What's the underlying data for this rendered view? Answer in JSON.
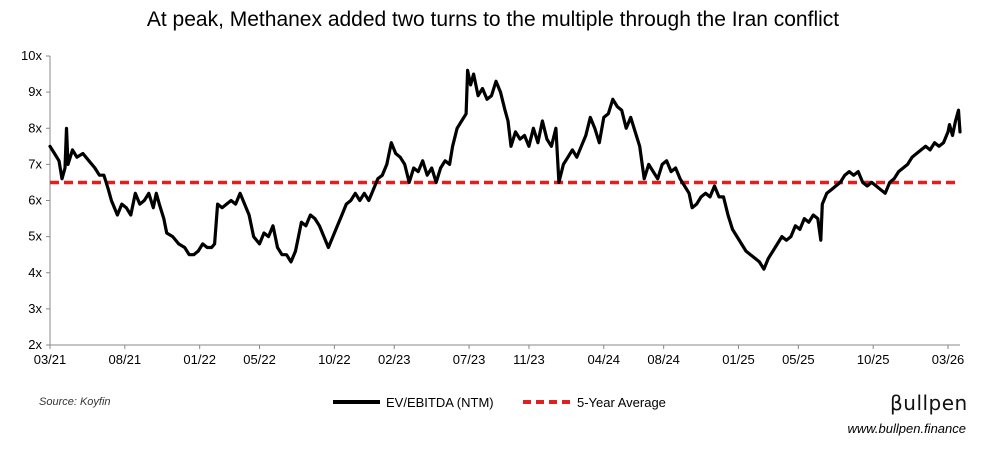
{
  "chart_data": {
    "type": "line",
    "title": "At peak, Methanex added two turns to the multiple through the Iran conflict",
    "ylim": [
      2,
      10
    ],
    "y_ticks": [
      "2x",
      "3x",
      "4x",
      "5x",
      "6x",
      "7x",
      "8x",
      "9x",
      "10x"
    ],
    "x_range": [
      0,
      60.8
    ],
    "x_ticks": [
      {
        "label": "03/21",
        "t": 0
      },
      {
        "label": "08/21",
        "t": 5
      },
      {
        "label": "01/22",
        "t": 10
      },
      {
        "label": "05/22",
        "t": 14
      },
      {
        "label": "10/22",
        "t": 19
      },
      {
        "label": "02/23",
        "t": 23
      },
      {
        "label": "07/23",
        "t": 28
      },
      {
        "label": "11/23",
        "t": 32
      },
      {
        "label": "04/24",
        "t": 37
      },
      {
        "label": "08/24",
        "t": 41
      },
      {
        "label": "01/25",
        "t": 46
      },
      {
        "label": "05/25",
        "t": 50
      },
      {
        "label": "10/25",
        "t": 55
      },
      {
        "label": "03/26",
        "t": 60
      }
    ],
    "series": [
      {
        "name": "EV/EBITDA (NTM)",
        "color": "#000000",
        "style": "solid",
        "points": [
          [
            0.0,
            7.5
          ],
          [
            0.3,
            7.3
          ],
          [
            0.6,
            7.1
          ],
          [
            0.8,
            6.6
          ],
          [
            1.0,
            6.9
          ],
          [
            1.1,
            8.0
          ],
          [
            1.2,
            7.0
          ],
          [
            1.5,
            7.4
          ],
          [
            1.8,
            7.2
          ],
          [
            2.2,
            7.3
          ],
          [
            2.6,
            7.1
          ],
          [
            3.0,
            6.9
          ],
          [
            3.3,
            6.7
          ],
          [
            3.6,
            6.7
          ],
          [
            3.9,
            6.3
          ],
          [
            4.1,
            6.0
          ],
          [
            4.3,
            5.8
          ],
          [
            4.5,
            5.6
          ],
          [
            4.8,
            5.9
          ],
          [
            5.1,
            5.8
          ],
          [
            5.4,
            5.6
          ],
          [
            5.7,
            6.2
          ],
          [
            6.0,
            5.9
          ],
          [
            6.3,
            6.0
          ],
          [
            6.6,
            6.2
          ],
          [
            6.9,
            5.8
          ],
          [
            7.1,
            6.2
          ],
          [
            7.3,
            5.9
          ],
          [
            7.6,
            5.5
          ],
          [
            7.8,
            5.1
          ],
          [
            8.2,
            5.0
          ],
          [
            8.6,
            4.8
          ],
          [
            9.0,
            4.7
          ],
          [
            9.3,
            4.5
          ],
          [
            9.6,
            4.5
          ],
          [
            9.9,
            4.6
          ],
          [
            10.2,
            4.8
          ],
          [
            10.5,
            4.7
          ],
          [
            10.8,
            4.7
          ],
          [
            11.0,
            4.8
          ],
          [
            11.2,
            5.9
          ],
          [
            11.5,
            5.8
          ],
          [
            11.8,
            5.9
          ],
          [
            12.1,
            6.0
          ],
          [
            12.4,
            5.9
          ],
          [
            12.7,
            6.2
          ],
          [
            13.0,
            5.9
          ],
          [
            13.3,
            5.6
          ],
          [
            13.6,
            5.0
          ],
          [
            14.0,
            4.8
          ],
          [
            14.3,
            5.1
          ],
          [
            14.6,
            5.0
          ],
          [
            14.9,
            5.3
          ],
          [
            15.2,
            4.7
          ],
          [
            15.5,
            4.5
          ],
          [
            15.8,
            4.5
          ],
          [
            16.1,
            4.3
          ],
          [
            16.4,
            4.6
          ],
          [
            16.6,
            5.0
          ],
          [
            16.8,
            5.4
          ],
          [
            17.1,
            5.3
          ],
          [
            17.4,
            5.6
          ],
          [
            17.7,
            5.5
          ],
          [
            18.0,
            5.3
          ],
          [
            18.3,
            5.0
          ],
          [
            18.6,
            4.7
          ],
          [
            18.9,
            5.0
          ],
          [
            19.2,
            5.3
          ],
          [
            19.5,
            5.6
          ],
          [
            19.8,
            5.9
          ],
          [
            20.1,
            6.0
          ],
          [
            20.4,
            6.2
          ],
          [
            20.7,
            6.0
          ],
          [
            21.0,
            6.2
          ],
          [
            21.3,
            6.0
          ],
          [
            21.6,
            6.3
          ],
          [
            21.9,
            6.6
          ],
          [
            22.2,
            6.7
          ],
          [
            22.5,
            7.0
          ],
          [
            22.8,
            7.6
          ],
          [
            23.1,
            7.3
          ],
          [
            23.4,
            7.2
          ],
          [
            23.7,
            7.0
          ],
          [
            24.0,
            6.5
          ],
          [
            24.3,
            6.9
          ],
          [
            24.6,
            6.8
          ],
          [
            24.9,
            7.1
          ],
          [
            25.2,
            6.7
          ],
          [
            25.5,
            6.9
          ],
          [
            25.8,
            6.5
          ],
          [
            26.1,
            6.9
          ],
          [
            26.4,
            7.1
          ],
          [
            26.7,
            7.0
          ],
          [
            26.9,
            7.5
          ],
          [
            27.2,
            8.0
          ],
          [
            27.5,
            8.2
          ],
          [
            27.8,
            8.4
          ],
          [
            27.9,
            9.6
          ],
          [
            28.1,
            9.2
          ],
          [
            28.3,
            9.5
          ],
          [
            28.6,
            8.9
          ],
          [
            28.9,
            9.1
          ],
          [
            29.2,
            8.8
          ],
          [
            29.5,
            8.9
          ],
          [
            29.8,
            9.3
          ],
          [
            30.1,
            9.0
          ],
          [
            30.4,
            8.5
          ],
          [
            30.6,
            8.2
          ],
          [
            30.8,
            7.5
          ],
          [
            31.1,
            7.9
          ],
          [
            31.4,
            7.7
          ],
          [
            31.7,
            7.8
          ],
          [
            32.0,
            7.5
          ],
          [
            32.3,
            8.0
          ],
          [
            32.6,
            7.6
          ],
          [
            32.9,
            8.2
          ],
          [
            33.2,
            7.7
          ],
          [
            33.5,
            7.5
          ],
          [
            33.8,
            8.0
          ],
          [
            34.0,
            6.5
          ],
          [
            34.3,
            7.0
          ],
          [
            34.6,
            7.2
          ],
          [
            34.9,
            7.4
          ],
          [
            35.2,
            7.2
          ],
          [
            35.5,
            7.5
          ],
          [
            35.8,
            7.8
          ],
          [
            36.1,
            8.3
          ],
          [
            36.4,
            8.0
          ],
          [
            36.7,
            7.6
          ],
          [
            37.0,
            8.3
          ],
          [
            37.3,
            8.4
          ],
          [
            37.6,
            8.8
          ],
          [
            37.9,
            8.6
          ],
          [
            38.2,
            8.5
          ],
          [
            38.5,
            8.0
          ],
          [
            38.8,
            8.3
          ],
          [
            39.1,
            7.9
          ],
          [
            39.4,
            7.5
          ],
          [
            39.7,
            6.6
          ],
          [
            40.0,
            7.0
          ],
          [
            40.3,
            6.8
          ],
          [
            40.6,
            6.6
          ],
          [
            40.9,
            7.0
          ],
          [
            41.2,
            7.1
          ],
          [
            41.5,
            6.8
          ],
          [
            41.8,
            6.9
          ],
          [
            42.1,
            6.6
          ],
          [
            42.4,
            6.4
          ],
          [
            42.7,
            6.2
          ],
          [
            42.9,
            5.8
          ],
          [
            43.2,
            5.9
          ],
          [
            43.5,
            6.1
          ],
          [
            43.8,
            6.2
          ],
          [
            44.1,
            6.1
          ],
          [
            44.4,
            6.4
          ],
          [
            44.7,
            6.1
          ],
          [
            45.0,
            6.1
          ],
          [
            45.3,
            5.6
          ],
          [
            45.6,
            5.2
          ],
          [
            45.9,
            5.0
          ],
          [
            46.2,
            4.8
          ],
          [
            46.5,
            4.6
          ],
          [
            46.8,
            4.5
          ],
          [
            47.1,
            4.4
          ],
          [
            47.4,
            4.3
          ],
          [
            47.7,
            4.1
          ],
          [
            48.0,
            4.4
          ],
          [
            48.3,
            4.6
          ],
          [
            48.6,
            4.8
          ],
          [
            48.9,
            5.0
          ],
          [
            49.2,
            4.9
          ],
          [
            49.5,
            5.0
          ],
          [
            49.8,
            5.3
          ],
          [
            50.1,
            5.2
          ],
          [
            50.4,
            5.5
          ],
          [
            50.7,
            5.4
          ],
          [
            51.0,
            5.6
          ],
          [
            51.3,
            5.5
          ],
          [
            51.5,
            4.9
          ],
          [
            51.6,
            5.9
          ],
          [
            51.9,
            6.2
          ],
          [
            52.2,
            6.3
          ],
          [
            52.5,
            6.4
          ],
          [
            52.8,
            6.5
          ],
          [
            53.1,
            6.7
          ],
          [
            53.4,
            6.8
          ],
          [
            53.7,
            6.7
          ],
          [
            54.0,
            6.8
          ],
          [
            54.3,
            6.5
          ],
          [
            54.6,
            6.4
          ],
          [
            54.9,
            6.5
          ],
          [
            55.2,
            6.4
          ],
          [
            55.5,
            6.3
          ],
          [
            55.8,
            6.2
          ],
          [
            56.1,
            6.5
          ],
          [
            56.4,
            6.6
          ],
          [
            56.7,
            6.8
          ],
          [
            57.0,
            6.9
          ],
          [
            57.3,
            7.0
          ],
          [
            57.6,
            7.2
          ],
          [
            57.9,
            7.3
          ],
          [
            58.2,
            7.4
          ],
          [
            58.5,
            7.5
          ],
          [
            58.8,
            7.4
          ],
          [
            59.1,
            7.6
          ],
          [
            59.4,
            7.5
          ],
          [
            59.7,
            7.6
          ],
          [
            60.0,
            7.9
          ],
          [
            60.1,
            8.1
          ],
          [
            60.3,
            7.8
          ],
          [
            60.5,
            8.2
          ],
          [
            60.7,
            8.5
          ],
          [
            60.8,
            7.9
          ]
        ]
      },
      {
        "name": "5-Year Average",
        "color": "#e01f1f",
        "style": "dashed",
        "value": 6.5
      }
    ],
    "legend_position": "bottom-center",
    "grid": false,
    "source": "Source: Koyfin"
  },
  "branding": {
    "name": "βullpen",
    "website": "www.bullpen.finance"
  }
}
